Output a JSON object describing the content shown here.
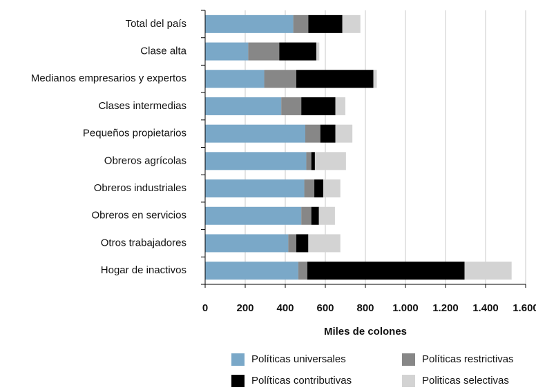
{
  "chart_data": {
    "type": "hbar_stacked",
    "x_label": "Miles de colones",
    "categories": [
      "Total del país",
      "Clase alta",
      "Medianos empresarios y expertos",
      "Clases intermedias",
      "Pequeños propietarios",
      "Obreros agrícolas",
      "Obreros industriales",
      "Obreros en servicios",
      "Otros trabajadores",
      "Hogar de inactivos"
    ],
    "series": [
      {
        "name": "Políticas universales",
        "color": "#7aa8c8",
        "values": [
          440,
          215,
          295,
          380,
          500,
          505,
          495,
          480,
          415,
          465
        ]
      },
      {
        "name": "Políticas restrictivas",
        "color": "#878787",
        "values": [
          75,
          155,
          160,
          100,
          75,
          25,
          50,
          50,
          40,
          45
        ]
      },
      {
        "name": "Políticas contributivas",
        "color": "#000000",
        "values": [
          170,
          185,
          385,
          170,
          75,
          18,
          45,
          38,
          60,
          785
        ]
      },
      {
        "name": "Politicas selectivas",
        "color": "#d3d3d3",
        "values": [
          90,
          15,
          17,
          50,
          85,
          155,
          85,
          80,
          160,
          235
        ]
      }
    ],
    "xlim": [
      0,
      1600
    ],
    "xticks": [
      0,
      200,
      400,
      600,
      800,
      {
        "value": 1000,
        "label": "1.000"
      },
      {
        "value": 1200,
        "label": "1.200"
      },
      {
        "value": 1400,
        "label": "1.400"
      },
      {
        "value": 1600,
        "label": "1.600"
      }
    ],
    "grid": true,
    "legend": "bottom"
  }
}
